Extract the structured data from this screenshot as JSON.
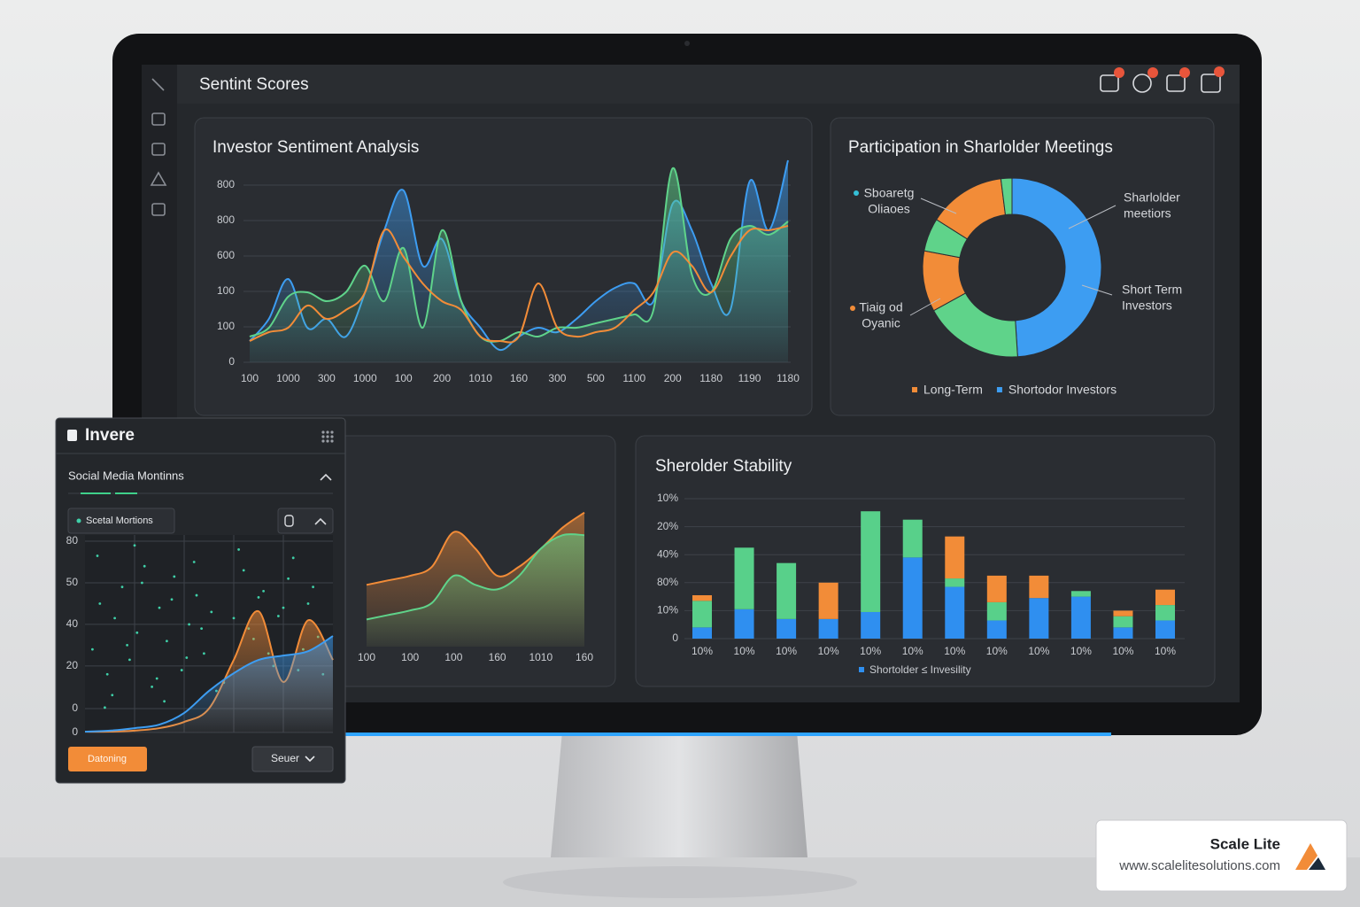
{
  "header": {
    "title": "Sentint Scores"
  },
  "chart_data": [
    {
      "type": "line",
      "title": "Investor Sentiment Analysis",
      "categories": [
        "100",
        null,
        "1000",
        null,
        "300",
        null,
        "1000",
        null,
        "100",
        null,
        "200",
        null,
        "1010",
        null,
        "160",
        null,
        "300",
        null,
        "500",
        null,
        "1100",
        null,
        "200",
        null,
        "1180",
        null,
        "1190",
        null,
        "1180"
      ],
      "ylim": [
        0,
        1200
      ],
      "yticks": [
        0,
        {
          "value": 200,
          "label": "100"
        },
        {
          "value": 400,
          "label": "100"
        },
        600,
        800,
        {
          "value": 1000,
          "label": "800"
        }
      ],
      "grid": true,
      "series": [
        {
          "color": "#3d9df2",
          "area": true,
          "values": [
            120,
            245,
            470,
            195,
            245,
            145,
            395,
            745,
            970,
            545,
            695,
            345,
            195,
            70,
            145,
            195,
            170,
            245,
            345,
            420,
            445,
            345,
            895,
            745,
            445,
            295,
            1020,
            745,
            1140
          ]
        },
        {
          "color": "#5fd38a",
          "area": true,
          "values": [
            145,
            195,
            370,
            395,
            345,
            395,
            545,
            345,
            645,
            195,
            745,
            345,
            145,
            120,
            170,
            145,
            195,
            195,
            220,
            245,
            270,
            295,
            1095,
            495,
            395,
            695,
            770,
            720,
            795
          ]
        },
        {
          "color": "#f28c38",
          "area": false,
          "values": [
            120,
            170,
            195,
            320,
            245,
            295,
            395,
            745,
            595,
            445,
            345,
            295,
            145,
            120,
            145,
            445,
            195,
            145,
            170,
            195,
            295,
            395,
            620,
            545,
            395,
            595,
            745,
            745,
            770
          ]
        }
      ]
    },
    {
      "type": "pie",
      "title": "Participation in Sharlolder Meetings",
      "values": [
        49,
        18,
        11,
        6,
        14,
        2
      ],
      "colors": [
        "#3d9df2",
        "#5fd38a",
        "#f28c38",
        "#5fd38a",
        "#f28c38",
        "#5fd38a"
      ],
      "annotations": [
        {
          "lines": [
            "Sboaretg",
            "Oliaoes"
          ],
          "color": "#35c0d8"
        },
        {
          "lines": [
            "Sharlolder",
            "meetiors"
          ]
        },
        {
          "lines": [
            "Short Term",
            "Investors"
          ]
        },
        {
          "lines": [
            "Tiaig od",
            "Oyanic"
          ],
          "color": "#f28c38"
        }
      ],
      "legend": [
        {
          "name": "Long-Term",
          "color": "#f28c38"
        },
        {
          "name": "Shortodor Investors",
          "color": "#3d9df2"
        }
      ]
    },
    {
      "type": "line",
      "categories": [
        "100",
        null,
        "100",
        null,
        "100",
        null,
        "160",
        null,
        "1010",
        null,
        "160"
      ],
      "ylim": [
        0,
        100
      ],
      "series": [
        {
          "color": "#f28c38",
          "area": true,
          "values": [
            41,
            44,
            47,
            53,
            76,
            65,
            47,
            53,
            65,
            79,
            89
          ]
        },
        {
          "color": "#5fd38a",
          "area": true,
          "values": [
            18,
            21,
            24,
            29,
            47,
            41,
            38,
            47,
            65,
            74,
            74
          ]
        }
      ]
    },
    {
      "type": "stacked_bar",
      "title": "Sherolder Stability",
      "categories": [
        "10%",
        "10%",
        "10%",
        "10%",
        "10%",
        "10%",
        "10%",
        "10%",
        "10%",
        "10%",
        "10%",
        "10%"
      ],
      "ylim": [
        0,
        100
      ],
      "yticks": [
        0,
        {
          "value": 20,
          "label": "10%"
        },
        {
          "value": 40,
          "label": "80%"
        },
        {
          "value": 60,
          "label": "40%"
        },
        {
          "value": 80,
          "label": "20%"
        },
        {
          "value": 100,
          "label": "10%"
        }
      ],
      "grid": true,
      "series": [
        {
          "name": "Shortolder ≤ Invesility",
          "color": "#2f8ff0",
          "values": [
            8,
            21,
            14,
            14,
            19,
            58,
            37,
            13,
            29,
            30,
            8,
            13
          ]
        },
        {
          "color": "#58d08a",
          "values": [
            19,
            44,
            40,
            0,
            72,
            27,
            6,
            13,
            0,
            4,
            8,
            11
          ]
        },
        {
          "color": "#f28c38",
          "values": [
            4,
            0,
            0,
            26,
            0,
            0,
            30,
            19,
            16,
            0,
            4,
            11
          ]
        }
      ]
    },
    {
      "type": "combo",
      "xlim": [
        0,
        100
      ],
      "ylim": [
        0,
        95
      ],
      "yticks": [
        0,
        {
          "value": 11.5,
          "label": "0"
        },
        {
          "value": 32,
          "label": "20"
        },
        {
          "value": 52,
          "label": "40"
        },
        {
          "value": 72,
          "label": "50"
        },
        {
          "value": 92,
          "label": "80"
        }
      ],
      "grid": true,
      "series": [
        {
          "name": "Scetal Mortions",
          "type": "scatter",
          "color": "#3fd0a8",
          "x": [
            3,
            6,
            9,
            12,
            15,
            18,
            21,
            24,
            27,
            30,
            33,
            36,
            39,
            42,
            45,
            48,
            51,
            5,
            11,
            17,
            23,
            29,
            35,
            41,
            47,
            53,
            60,
            64,
            68,
            72,
            76,
            80,
            84,
            88,
            92,
            96,
            62,
            66,
            70,
            74,
            78,
            82,
            86,
            90,
            94,
            8,
            20,
            32,
            44,
            56
          ],
          "values": [
            40,
            62,
            28,
            55,
            70,
            35,
            48,
            80,
            22,
            60,
            44,
            75,
            30,
            52,
            66,
            38,
            58,
            85,
            18,
            42,
            72,
            26,
            64,
            36,
            50,
            20,
            55,
            78,
            45,
            68,
            32,
            60,
            84,
            40,
            70,
            28,
            88,
            50,
            65,
            38,
            56,
            74,
            30,
            62,
            46,
            12,
            90,
            15,
            82,
            24
          ]
        },
        {
          "type": "area",
          "color": "#f28c38",
          "x": [
            0,
            10,
            20,
            30,
            40,
            50,
            60,
            70,
            80,
            90,
            100
          ],
          "values": [
            0.4,
            0.4,
            0.9,
            2.1,
            5.1,
            11.5,
            34.9,
            58.3,
            24.3,
            54,
            34.9
          ]
        },
        {
          "type": "area",
          "color": "#3d9df2",
          "x": [
            0,
            10,
            20,
            30,
            40,
            50,
            60,
            70,
            80,
            90,
            100
          ],
          "values": [
            0.4,
            0.9,
            2.1,
            3.8,
            9.4,
            20,
            28.5,
            34.9,
            37,
            39.1,
            46.4
          ]
        }
      ]
    }
  ],
  "panel": {
    "title": "Invere",
    "subtitle": "Social Media Montinns",
    "button": "Datoning",
    "select": "Seuer"
  },
  "badge": {
    "name": "Scale Lite",
    "url": "www.scalelitesolutions.com"
  }
}
